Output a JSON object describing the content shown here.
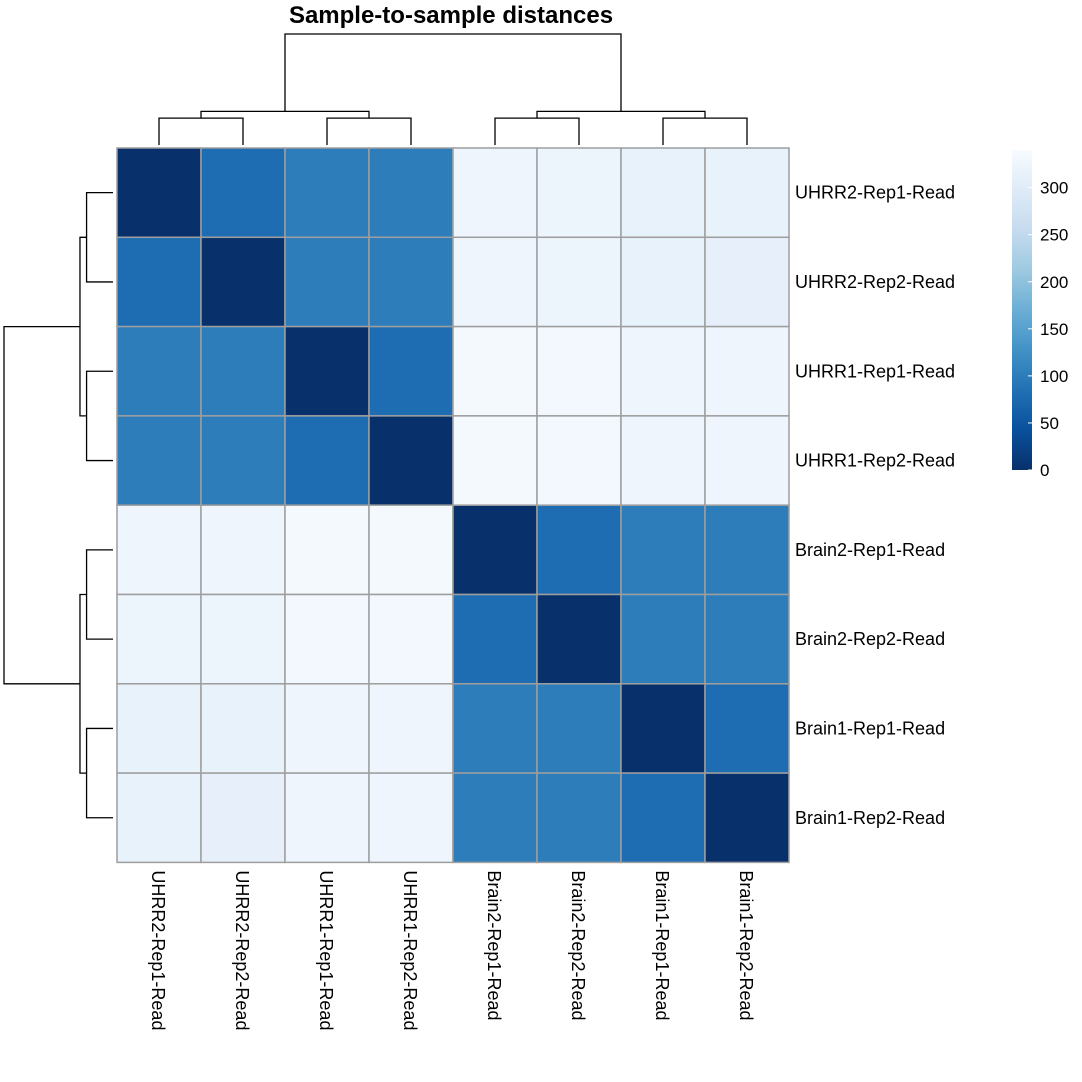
{
  "chart_data": {
    "type": "heatmap",
    "title": "Sample-to-sample distances",
    "rows": [
      "UHRR2-Rep1-Read",
      "UHRR2-Rep2-Read",
      "UHRR1-Rep1-Read",
      "UHRR1-Rep2-Read",
      "Brain2-Rep1-Read",
      "Brain2-Rep2-Read",
      "Brain1-Rep1-Read",
      "Brain1-Rep2-Read"
    ],
    "columns": [
      "UHRR2-Rep1-Read",
      "UHRR2-Rep2-Read",
      "UHRR1-Rep1-Read",
      "UHRR1-Rep2-Read",
      "Brain2-Rep1-Read",
      "Brain2-Rep2-Read",
      "Brain1-Rep1-Read",
      "Brain1-Rep2-Read"
    ],
    "values": [
      [
        0,
        80,
        100,
        100,
        325,
        323,
        315,
        315
      ],
      [
        80,
        0,
        100,
        100,
        325,
        323,
        315,
        312
      ],
      [
        100,
        100,
        0,
        80,
        335,
        333,
        325,
        325
      ],
      [
        100,
        100,
        80,
        0,
        335,
        333,
        325,
        325
      ],
      [
        325,
        325,
        335,
        335,
        0,
        80,
        100,
        100
      ],
      [
        323,
        323,
        333,
        333,
        80,
        0,
        100,
        100
      ],
      [
        315,
        315,
        325,
        325,
        100,
        100,
        0,
        80
      ],
      [
        315,
        312,
        325,
        325,
        100,
        100,
        80,
        0
      ]
    ],
    "colorbar": {
      "ticks": [
        0,
        50,
        100,
        150,
        200,
        250,
        300
      ],
      "range": [
        0,
        340
      ],
      "palette": [
        "#08306b",
        "#08519c",
        "#2171b5",
        "#4292c6",
        "#6baed6",
        "#9ecae1",
        "#c6dbef",
        "#deebf7",
        "#f7fbff"
      ]
    },
    "legend_position": "right",
    "col_dendrogram": [
      {
        "left": 0,
        "right": 1,
        "height": 80
      },
      {
        "left": 2,
        "right": 3,
        "height": 80
      },
      {
        "left": "a",
        "right": "b",
        "height": 100
      },
      {
        "left": 4,
        "right": 5,
        "height": 80
      },
      {
        "left": 6,
        "right": 7,
        "height": 80
      },
      {
        "left": "d",
        "right": "e",
        "height": 100
      },
      {
        "left": "c",
        "right": "f",
        "height": 330
      }
    ]
  }
}
